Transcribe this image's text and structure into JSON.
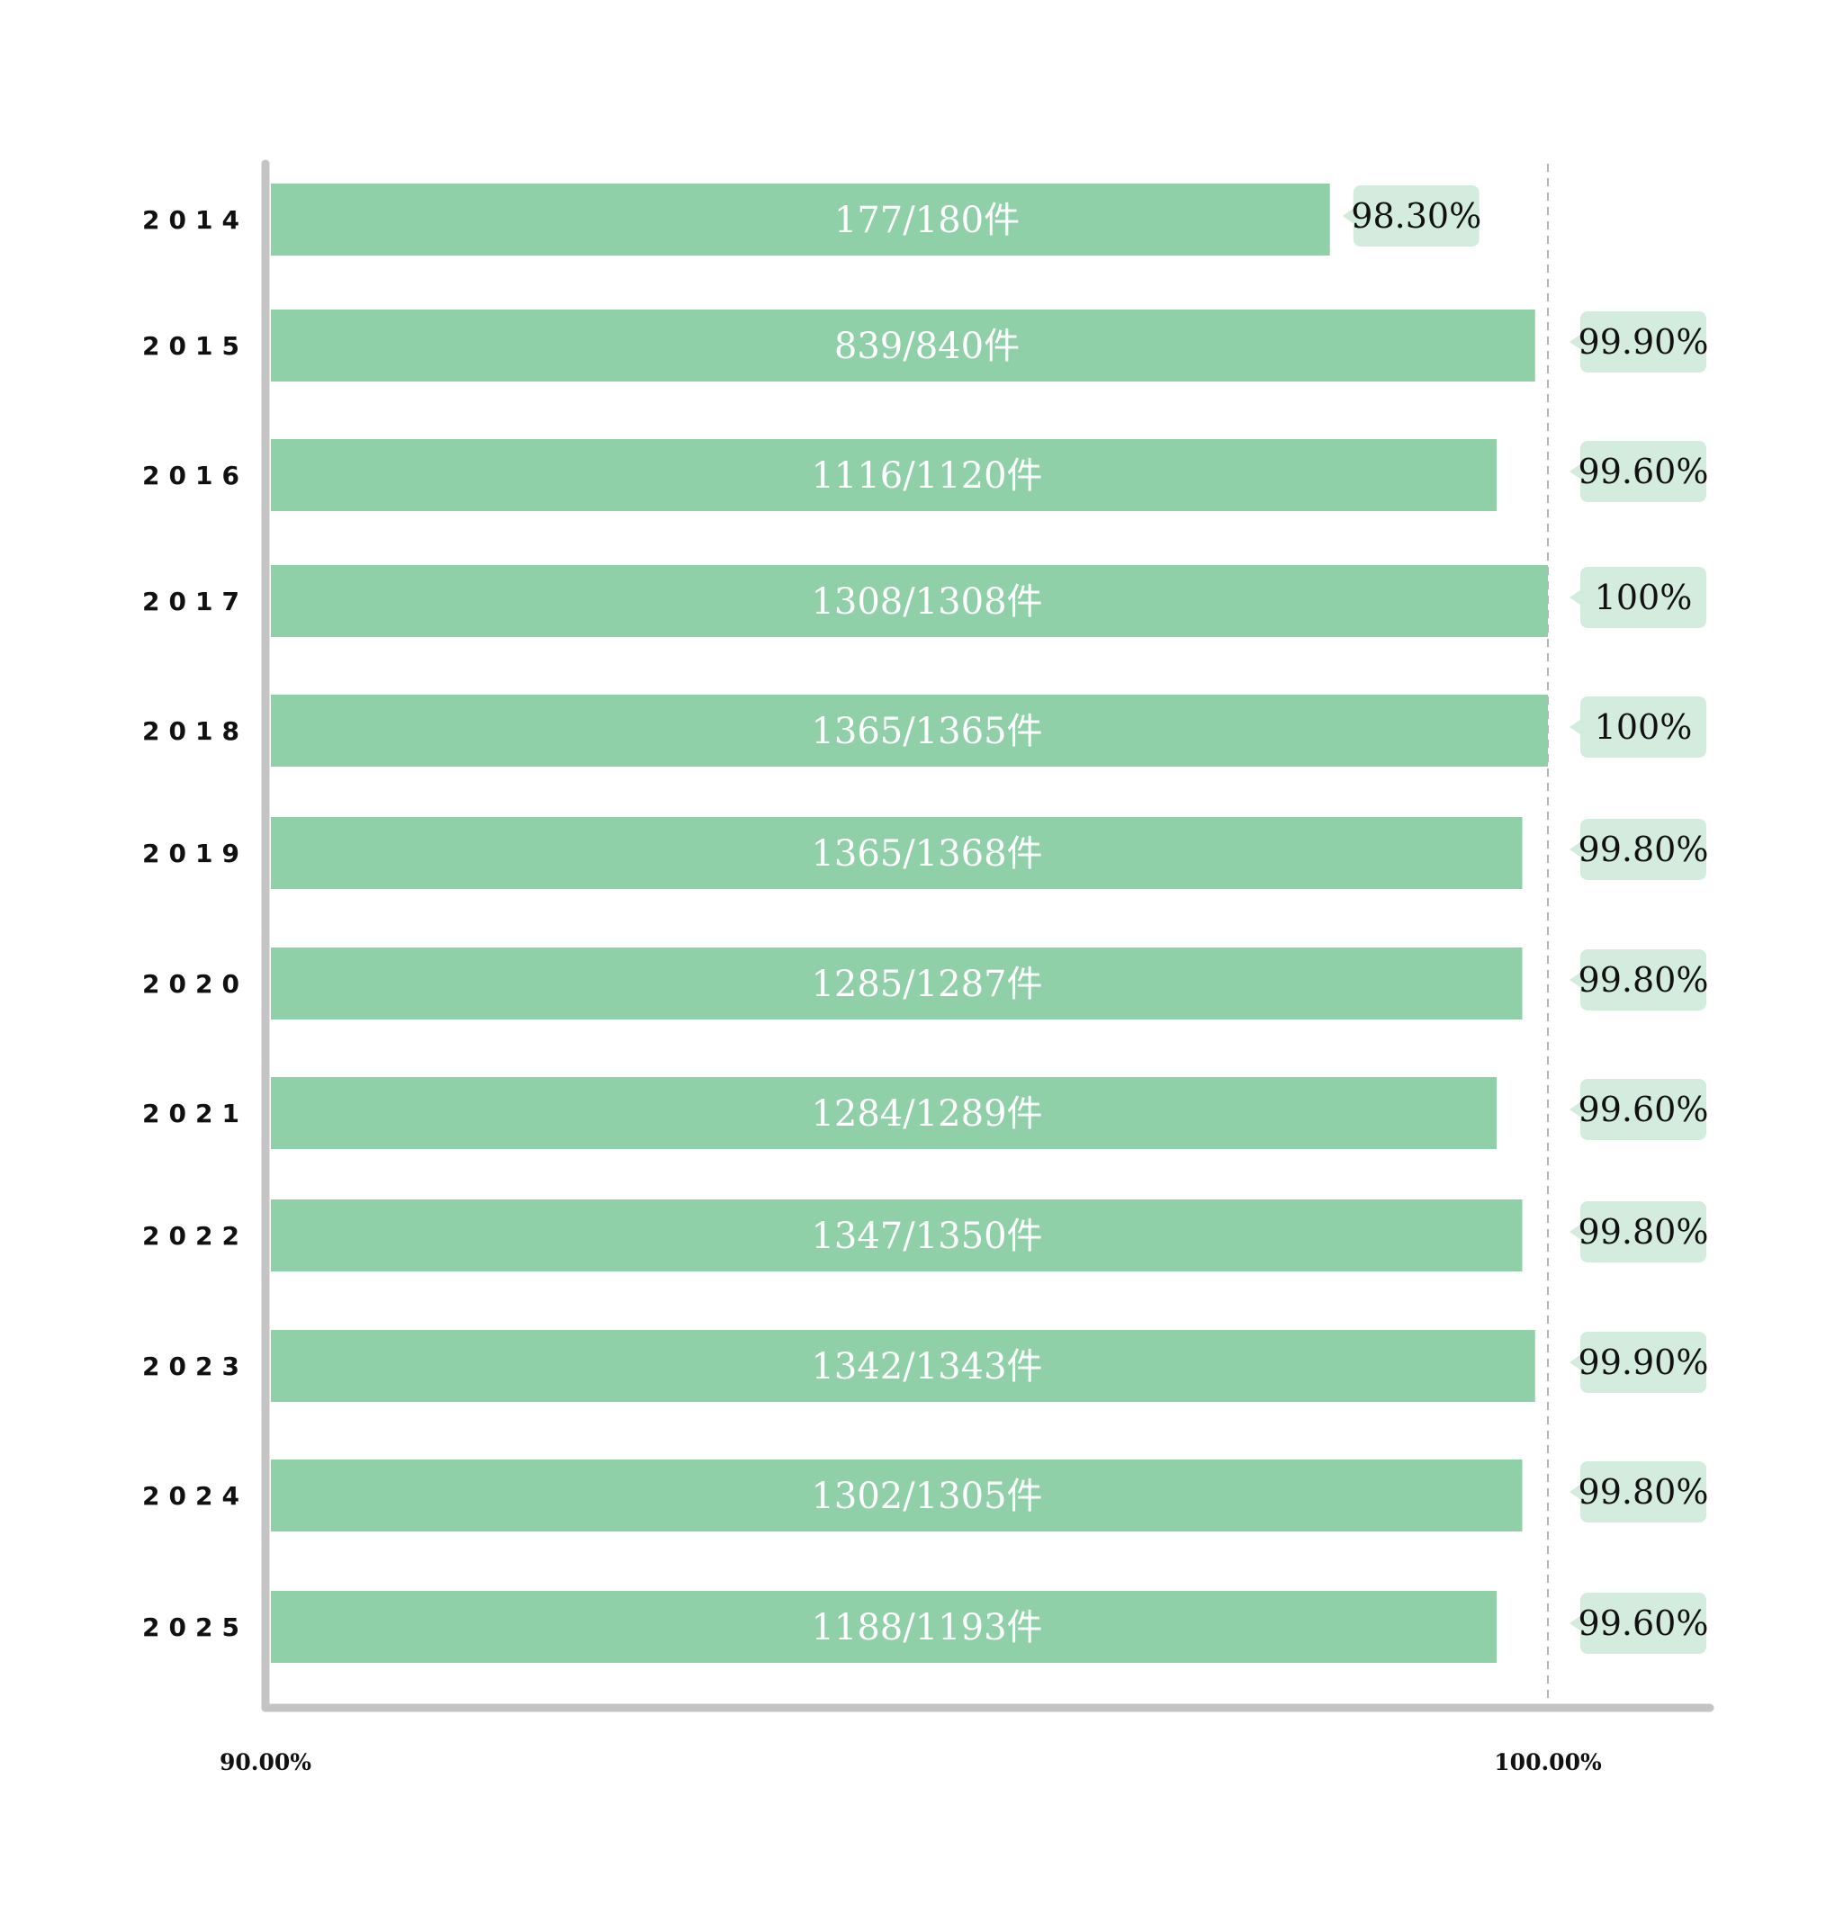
{
  "colors": {
    "bar": "#8fd0a9",
    "label_box": "#d4ecdd",
    "axis": "#c4c4c4",
    "reference_line": "#b3b3b3"
  },
  "chart_data": {
    "type": "bar",
    "orientation": "horizontal",
    "categories": [
      "2014",
      "2015",
      "2016",
      "2017",
      "2018",
      "2019",
      "2020",
      "2021",
      "2022",
      "2023",
      "2024",
      "2025"
    ],
    "values": [
      98.3,
      99.9,
      99.6,
      100,
      100,
      99.8,
      99.8,
      99.6,
      99.8,
      99.9,
      99.8,
      99.6
    ],
    "bar_labels": [
      "177/180件",
      "839/840件",
      "1116/1120件",
      "1308/1308件",
      "1365/1365件",
      "1365/1368件",
      "1285/1287件",
      "1284/1289件",
      "1347/1350件",
      "1342/1343件",
      "1302/1305件",
      "1188/1193件"
    ],
    "value_labels": [
      "98.30%",
      "99.90%",
      "99.60%",
      "100%",
      "100%",
      "99.80%",
      "99.80%",
      "99.60%",
      "99.80%",
      "99.90%",
      "99.80%",
      "99.60%"
    ],
    "xlim": [
      90,
      101.3
    ],
    "x_ticks": [
      90,
      100
    ],
    "x_tick_labels": [
      "90.00%",
      "100.00%"
    ],
    "reference_line": 100,
    "grid": false,
    "legend": "none",
    "title": "",
    "xlabel": "",
    "ylabel": ""
  }
}
